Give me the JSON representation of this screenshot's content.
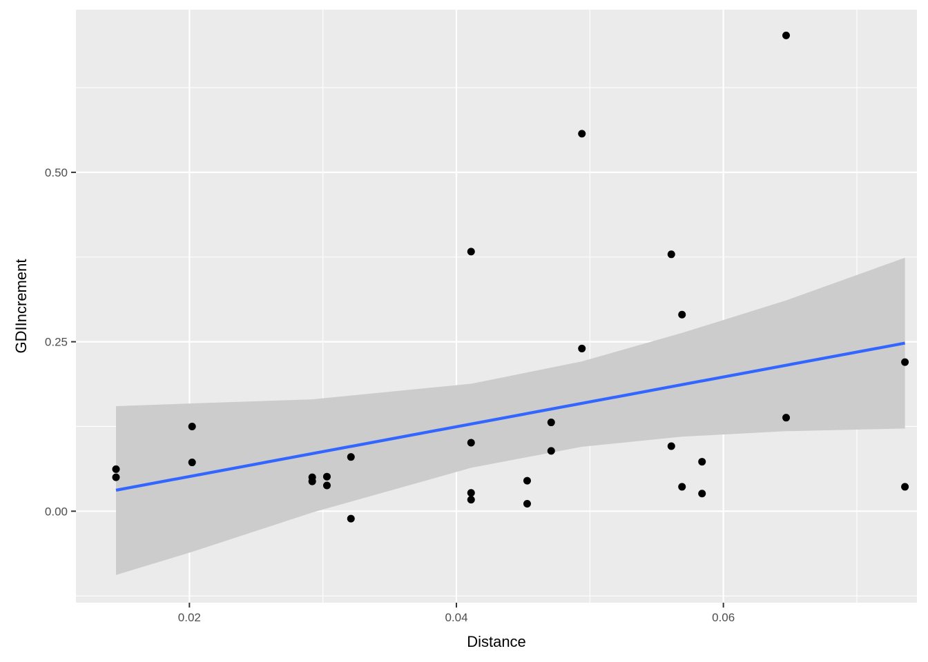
{
  "chart_data": {
    "type": "scatter",
    "title": "",
    "xlabel": "Distance",
    "ylabel": "GDIIncrement",
    "xlim": [
      0.0115,
      0.0745
    ],
    "ylim": [
      -0.135,
      0.74
    ],
    "x_ticks": [
      0.02,
      0.04,
      0.06
    ],
    "x_tick_labels": [
      "0.02",
      "0.04",
      "0.06"
    ],
    "y_ticks": [
      0.0,
      0.25,
      0.5
    ],
    "y_tick_labels": [
      "0.00",
      "0.25",
      "0.50"
    ],
    "grid": true,
    "points": [
      {
        "x": 0.0145,
        "y": 0.062
      },
      {
        "x": 0.0145,
        "y": 0.05
      },
      {
        "x": 0.0202,
        "y": 0.125
      },
      {
        "x": 0.0202,
        "y": 0.072
      },
      {
        "x": 0.0292,
        "y": 0.05
      },
      {
        "x": 0.0292,
        "y": 0.044
      },
      {
        "x": 0.0303,
        "y": 0.051
      },
      {
        "x": 0.0303,
        "y": 0.038
      },
      {
        "x": 0.0321,
        "y": 0.08
      },
      {
        "x": 0.0321,
        "y": -0.011
      },
      {
        "x": 0.0411,
        "y": 0.383
      },
      {
        "x": 0.0411,
        "y": 0.101
      },
      {
        "x": 0.0411,
        "y": 0.027
      },
      {
        "x": 0.0411,
        "y": 0.017
      },
      {
        "x": 0.0453,
        "y": 0.045
      },
      {
        "x": 0.0453,
        "y": 0.011
      },
      {
        "x": 0.0471,
        "y": 0.131
      },
      {
        "x": 0.0471,
        "y": 0.089
      },
      {
        "x": 0.0494,
        "y": 0.557
      },
      {
        "x": 0.0494,
        "y": 0.24
      },
      {
        "x": 0.0561,
        "y": 0.379
      },
      {
        "x": 0.0561,
        "y": 0.096
      },
      {
        "x": 0.0569,
        "y": 0.29
      },
      {
        "x": 0.0569,
        "y": 0.036
      },
      {
        "x": 0.0584,
        "y": 0.073
      },
      {
        "x": 0.0584,
        "y": 0.026
      },
      {
        "x": 0.0647,
        "y": 0.702
      },
      {
        "x": 0.0647,
        "y": 0.138
      },
      {
        "x": 0.0736,
        "y": 0.22
      },
      {
        "x": 0.0736,
        "y": 0.036
      }
    ],
    "point_color": "#000000",
    "fit": {
      "method": "linear",
      "x": [
        0.0145,
        0.0736
      ],
      "y": [
        0.031,
        0.248
      ],
      "color": "#3366FF"
    },
    "confidence_band": {
      "x": [
        0.0145,
        0.0202,
        0.0292,
        0.0411,
        0.0494,
        0.0569,
        0.0647,
        0.0736
      ],
      "upper": [
        0.155,
        0.159,
        0.165,
        0.188,
        0.221,
        0.263,
        0.311,
        0.374
      ],
      "lower": [
        -0.094,
        -0.06,
        -0.002,
        0.064,
        0.095,
        0.11,
        0.118,
        0.122
      ],
      "color": "#cccccc"
    },
    "panel_background": "#EBEBEB",
    "grid_color": "#FFFFFF"
  }
}
